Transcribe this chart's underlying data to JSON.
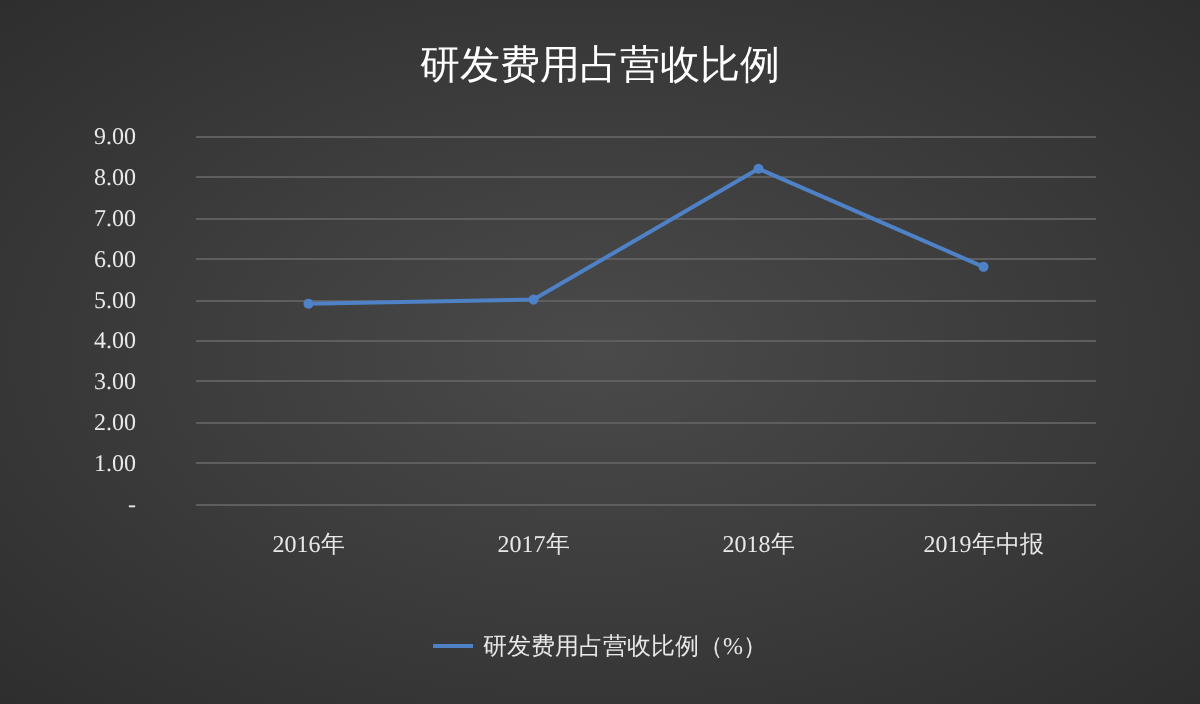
{
  "chart_data": {
    "type": "line",
    "title": "研发费用占营收比例",
    "categories": [
      "2016年",
      "2017年",
      "2018年",
      "2019年中报"
    ],
    "series": [
      {
        "name": "研发费用占营收比例（%）",
        "color": "#4f81c7",
        "values": [
          4.9,
          5.0,
          8.2,
          5.8
        ]
      }
    ],
    "ylim": [
      0,
      9
    ],
    "yticks": [
      {
        "value": 0,
        "label": "-"
      },
      {
        "value": 1,
        "label": "1.00"
      },
      {
        "value": 2,
        "label": "2.00"
      },
      {
        "value": 3,
        "label": "3.00"
      },
      {
        "value": 4,
        "label": "4.00"
      },
      {
        "value": 5,
        "label": "5.00"
      },
      {
        "value": 6,
        "label": "6.00"
      },
      {
        "value": 7,
        "label": "7.00"
      },
      {
        "value": 8,
        "label": "8.00"
      },
      {
        "value": 9,
        "label": "9.00"
      }
    ],
    "grid": "y",
    "legend": "bottom",
    "marker": "circle",
    "line_style": "solid"
  }
}
